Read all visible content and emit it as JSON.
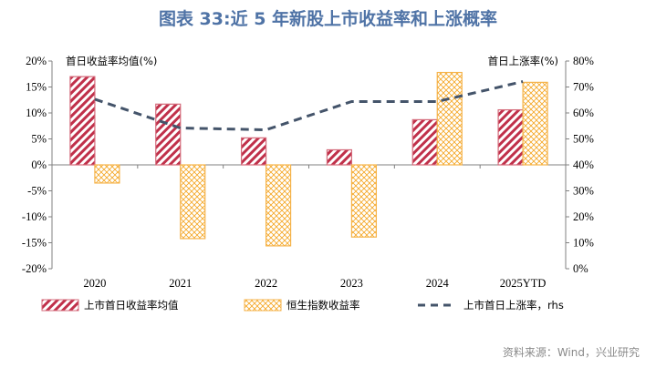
{
  "title": "图表 33:近 5 年新股上市收益率和上涨概率",
  "source": "资料来源：Wind，兴业研究",
  "colors": {
    "title": "#4f73a6",
    "ipo_bar": "#c0304a",
    "hsi_bar": "#f5a623",
    "line": "#44546a"
  },
  "chart_data": {
    "type": "bar+line",
    "categories": [
      "2020",
      "2021",
      "2022",
      "2023",
      "2024",
      "2025YTD"
    ],
    "left_axis": {
      "label": "首日收益率均值(%)",
      "ylim": [
        -20,
        20
      ],
      "ticks": [
        "-20%",
        "-15%",
        "-10%",
        "-5%",
        "0%",
        "5%",
        "10%",
        "15%",
        "20%"
      ]
    },
    "right_axis": {
      "label": "首日上涨率(%)",
      "ylim": [
        0,
        80
      ],
      "ticks": [
        "0%",
        "10%",
        "20%",
        "30%",
        "40%",
        "50%",
        "60%",
        "70%",
        "80%"
      ]
    },
    "series": [
      {
        "name": "上市首日收益率均值",
        "type": "bar",
        "axis": "left",
        "pattern": "diagonal-stripes",
        "values": [
          17.0,
          11.7,
          5.2,
          2.9,
          8.7,
          10.6
        ]
      },
      {
        "name": "恒生指数收益率",
        "type": "bar",
        "axis": "left",
        "pattern": "crosshatch",
        "values": [
          -3.5,
          -14.2,
          -15.6,
          -13.9,
          17.8,
          15.9
        ]
      },
      {
        "name": "上市首日上涨率，rhs",
        "type": "line",
        "axis": "right",
        "style": "dashed",
        "values": [
          65.3,
          54.2,
          53.5,
          64.4,
          64.4,
          72.1
        ]
      }
    ],
    "grid": false,
    "legend": "bottom"
  }
}
